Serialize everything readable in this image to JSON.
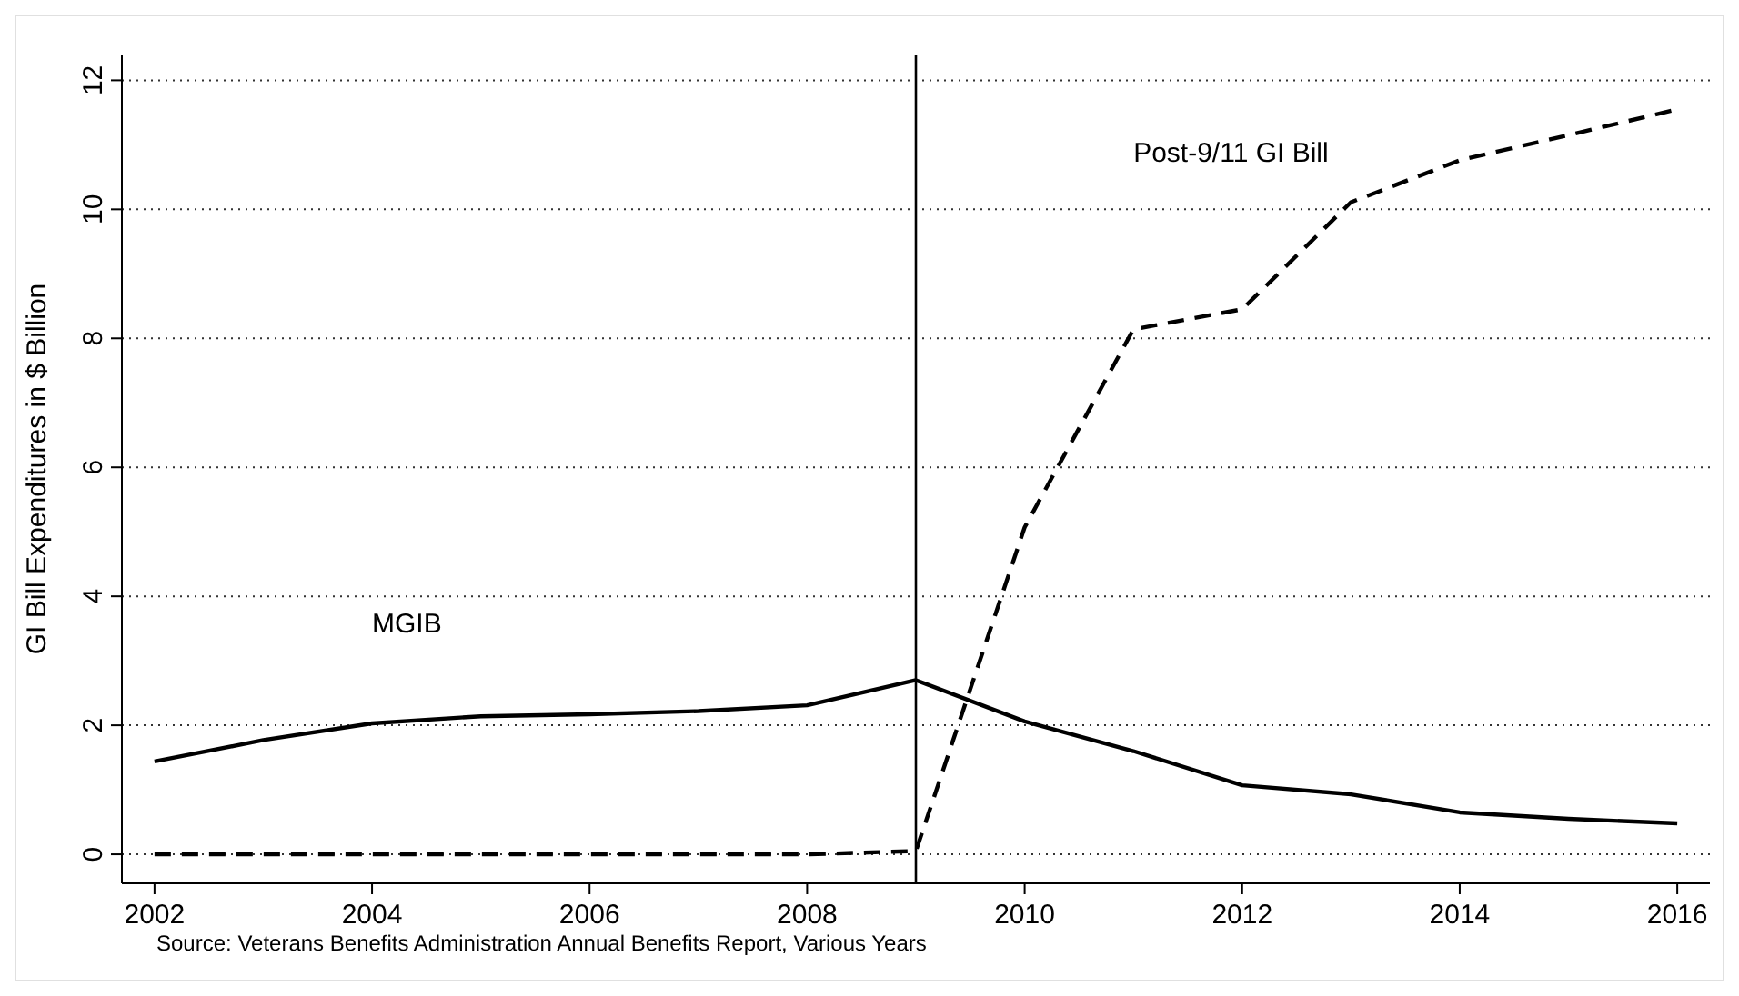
{
  "chart_data": {
    "type": "line",
    "ylabel": "GI Bill Expenditures in $ Billion",
    "x": [
      2002,
      2003,
      2004,
      2005,
      2006,
      2007,
      2008,
      2009,
      2010,
      2011,
      2012,
      2013,
      2014,
      2015,
      2016
    ],
    "series": [
      {
        "name": "MGIB",
        "color": "#000000",
        "line_style": "solid",
        "values": [
          1.44,
          1.77,
          2.03,
          2.14,
          2.17,
          2.22,
          2.31,
          2.7,
          2.06,
          1.6,
          1.07,
          0.93,
          0.65,
          0.55,
          0.48
        ]
      },
      {
        "name": "Post-9/11 GI Bill",
        "color": "#000000",
        "line_style": "dashed",
        "values": [
          0,
          0,
          0,
          0,
          0,
          0,
          0,
          0.05,
          5.07,
          8.14,
          8.45,
          10.11,
          10.76,
          11.15,
          11.55
        ]
      }
    ],
    "xlim": [
      2001.7,
      2016.3
    ],
    "xticks": [
      2002,
      2004,
      2006,
      2008,
      2010,
      2012,
      2014,
      2016
    ],
    "ylim": [
      -0.45,
      12.4
    ],
    "yticks": [
      0,
      2,
      4,
      6,
      8,
      10,
      12
    ],
    "grid": "y",
    "marker": "none",
    "ref_lines": [
      {
        "axis": "x",
        "value": 2009,
        "color": "#000000"
      }
    ],
    "annotations": [
      "Source: Veterans Benefits Administration Annual Benefits Report, Various Years"
    ]
  }
}
